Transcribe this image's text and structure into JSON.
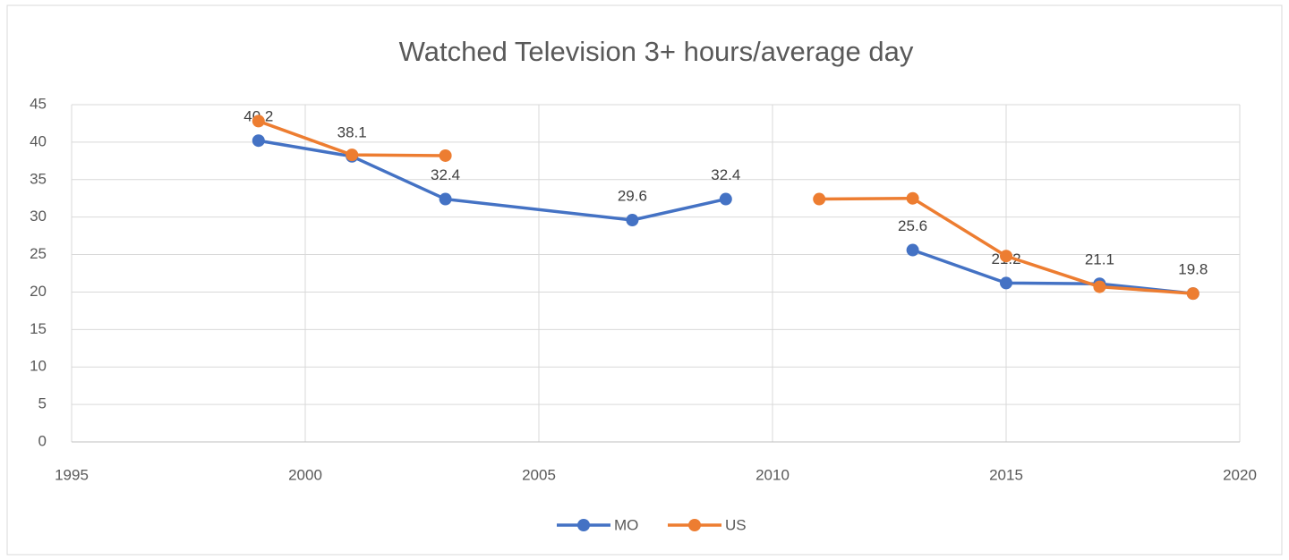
{
  "chart_data": {
    "type": "line",
    "title": "Watched Television 3+ hours/average day",
    "x": [
      1999,
      2001,
      2003,
      2007,
      2009,
      2011,
      2013,
      2015,
      2017,
      2019
    ],
    "series": [
      {
        "name": "MO",
        "color": "#4472c4",
        "values": [
          40.2,
          38.1,
          32.4,
          29.6,
          32.4,
          null,
          25.6,
          21.2,
          21.1,
          19.8
        ],
        "data_labels": true
      },
      {
        "name": "US",
        "color": "#ed7d31",
        "values": [
          42.8,
          38.3,
          38.2,
          null,
          null,
          32.4,
          32.5,
          24.8,
          20.7,
          19.8
        ],
        "data_labels": false
      }
    ],
    "xlim": [
      1995,
      2020
    ],
    "xticks": [
      1995,
      2000,
      2005,
      2010,
      2015,
      2020
    ],
    "ylim": [
      0,
      45
    ],
    "yticks": [
      0,
      5,
      10,
      15,
      20,
      25,
      30,
      35,
      40,
      45
    ],
    "grid": true,
    "legend": "bottom"
  }
}
